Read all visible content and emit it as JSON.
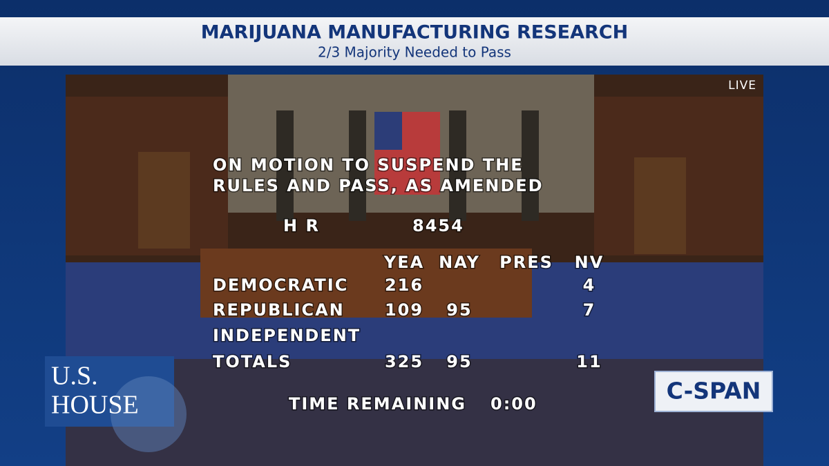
{
  "header": {
    "title": "MARIJUANA MANUFACTURING RESEARCH",
    "subtitle": "2/3 Majority Needed to Pass"
  },
  "live": "LIVE",
  "motion": [
    "ON MOTION TO SUSPEND THE",
    "RULES AND PASS, AS AMENDED"
  ],
  "bill": {
    "label": "H R",
    "number": "8454"
  },
  "vote": {
    "columns": [
      "YEA",
      "NAY",
      "PRES",
      "NV"
    ],
    "rows": [
      {
        "party": "DEMOCRATIC",
        "counts": [
          216,
          null,
          null,
          4
        ]
      },
      {
        "party": "REPUBLICAN",
        "counts": [
          109,
          95,
          null,
          7
        ]
      },
      {
        "party": "INDEPENDENT",
        "counts": [
          null,
          null,
          null,
          null
        ]
      },
      {
        "party": "TOTALS",
        "counts": [
          325,
          95,
          null,
          11
        ]
      }
    ]
  },
  "time": {
    "label": "TIME REMAINING",
    "value": "0:00"
  },
  "logos": {
    "house": [
      "U.S.",
      "HOUSE"
    ],
    "network": "C-SPAN"
  }
}
